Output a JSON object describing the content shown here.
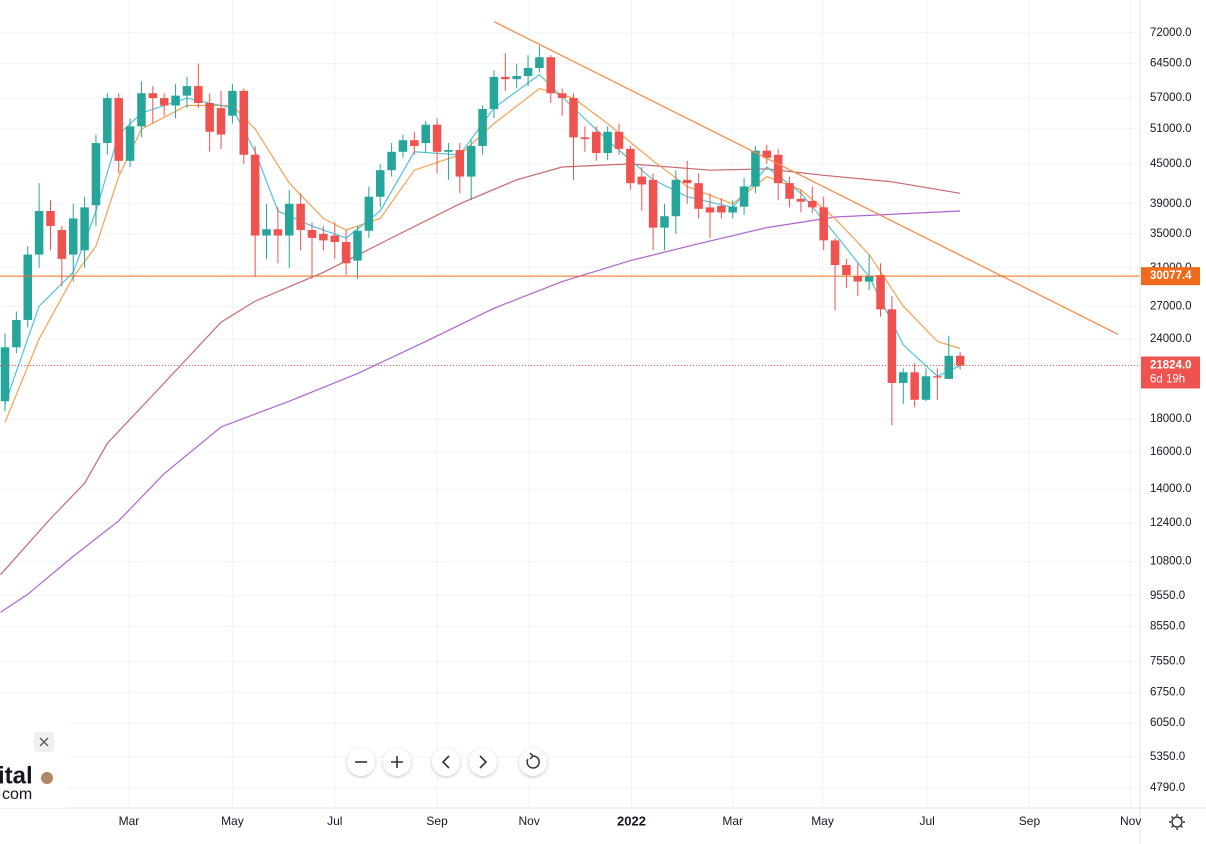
{
  "chart_data": {
    "type": "candlestick",
    "open": [
      19200,
      23300,
      25700,
      32500,
      38000,
      35500,
      32500,
      33000,
      38800,
      48500,
      57000,
      45500,
      51500,
      58000,
      57000,
      55500,
      57500,
      59500,
      56000,
      55000,
      53500,
      58500,
      46500,
      34800,
      35600,
      34800,
      39000,
      35500,
      35000,
      34800,
      34000,
      31800,
      35400,
      40000,
      44000,
      47000,
      49000,
      48500,
      51800,
      47000,
      47300,
      43000,
      48000,
      54800,
      61500,
      61000,
      61700,
      63500,
      66000,
      58000,
      57000,
      49500,
      50500,
      46800,
      50500,
      47500,
      43000,
      42500,
      35800,
      37300,
      42500,
      42000,
      38500,
      38700,
      37800,
      38600,
      41500,
      47200,
      46500,
      42000,
      39700,
      39400,
      38500,
      34200,
      31300,
      30100,
      29500,
      30200,
      26700,
      20500,
      21300,
      19300,
      21000,
      20800,
      22600
    ],
    "high": [
      24500,
      26500,
      33500,
      42000,
      39500,
      36000,
      39000,
      40000,
      50000,
      58000,
      58000,
      53000,
      60500,
      59500,
      58000,
      60000,
      61500,
      64500,
      58000,
      58500,
      60000,
      59000,
      48000,
      39000,
      38500,
      41000,
      40500,
      36500,
      36000,
      36500,
      35500,
      36000,
      41500,
      45000,
      48500,
      50000,
      50500,
      52500,
      53000,
      48500,
      48500,
      49000,
      55500,
      63000,
      67000,
      64500,
      66500,
      68800,
      66500,
      59000,
      58000,
      51500,
      51500,
      51500,
      52000,
      48000,
      44500,
      43500,
      39000,
      44000,
      45500,
      43500,
      40500,
      39800,
      39500,
      42800,
      48000,
      48200,
      47500,
      43000,
      41000,
      41500,
      40000,
      34500,
      32000,
      31500,
      32500,
      31500,
      28000,
      21600,
      22000,
      21600,
      21600,
      24300,
      22900
    ],
    "low": [
      18500,
      22800,
      25000,
      31000,
      33000,
      29000,
      29500,
      31000,
      36000,
      46500,
      43500,
      44500,
      49500,
      52000,
      53500,
      53000,
      55000,
      55000,
      47000,
      47500,
      52000,
      45000,
      30000,
      32000,
      31500,
      31000,
      33000,
      29800,
      33000,
      32000,
      30200,
      29800,
      34500,
      38500,
      43000,
      46000,
      46500,
      46800,
      43500,
      42500,
      40500,
      39500,
      46500,
      53000,
      58500,
      59000,
      59500,
      62500,
      56000,
      53500,
      42500,
      47000,
      45500,
      45600,
      46500,
      41000,
      38000,
      33000,
      33000,
      35000,
      39000,
      37000,
      34500,
      37000,
      37000,
      37500,
      40500,
      45000,
      39500,
      38500,
      37800,
      37700,
      33000,
      26600,
      28800,
      28000,
      28600,
      26000,
      17600,
      19000,
      18800,
      19200,
      19300,
      20800,
      21500
    ],
    "close": [
      23300,
      25700,
      32500,
      38000,
      36000,
      32000,
      37000,
      38500,
      48500,
      57000,
      45500,
      51500,
      58000,
      57000,
      55500,
      57500,
      59500,
      56000,
      50500,
      50000,
      58500,
      46500,
      34800,
      35600,
      34800,
      39000,
      35500,
      34500,
      34200,
      34000,
      31500,
      35400,
      40000,
      44000,
      47000,
      49000,
      48000,
      51800,
      47000,
      47300,
      43000,
      48000,
      54800,
      61500,
      61000,
      61700,
      63500,
      66000,
      58000,
      57000,
      49500,
      49200,
      46800,
      50500,
      47500,
      42000,
      41800,
      35800,
      37300,
      42500,
      42000,
      38300,
      37800,
      37800,
      38600,
      41500,
      47200,
      46000,
      42000,
      39700,
      39300,
      38500,
      34200,
      31300,
      30200,
      29500,
      30100,
      26700,
      20500,
      21300,
      19300,
      21000,
      20900,
      22600,
      21824
    ],
    "up_color": "#26a69a",
    "down_color": "#ef5350",
    "xlim": [
      -0.44,
      99.82
    ],
    "xticks": [
      {
        "value": 10.9,
        "label": "Mar"
      },
      {
        "value": 20.0,
        "label": "May"
      },
      {
        "value": 29.0,
        "label": "Jul"
      },
      {
        "value": 38.0,
        "label": "Sep"
      },
      {
        "value": 46.1,
        "label": "Nov"
      },
      {
        "value": 55.1,
        "label": "2022"
      },
      {
        "value": 64.0,
        "label": "Mar"
      },
      {
        "value": 71.9,
        "label": "May"
      },
      {
        "value": 81.1,
        "label": "Jul"
      },
      {
        "value": 90.1,
        "label": "Sep"
      },
      {
        "value": 99.0,
        "label": "Nov"
      }
    ],
    "ylim": [
      4458,
      81050
    ],
    "log_scale": true,
    "grid": true,
    "yticks": [
      {
        "value": 72000,
        "label": "72000.0"
      },
      {
        "value": 64500,
        "label": "64500.0"
      },
      {
        "value": 57000,
        "label": "57000.0"
      },
      {
        "value": 51000,
        "label": "51000.0"
      },
      {
        "value": 45000,
        "label": "45000.0"
      },
      {
        "value": 39000,
        "label": "39000.0"
      },
      {
        "value": 35000,
        "label": "35000.0"
      },
      {
        "value": 31000,
        "label": "31000.0"
      },
      {
        "value": 27000,
        "label": "27000.0"
      },
      {
        "value": 24000,
        "label": "24000.0"
      },
      {
        "value": 18000,
        "label": "18000.0"
      },
      {
        "value": 16000,
        "label": "16000.0"
      },
      {
        "value": 14000,
        "label": "14000.0"
      },
      {
        "value": 12400,
        "label": "12400.0"
      },
      {
        "value": 10800,
        "label": "10800.0"
      },
      {
        "value": 9550,
        "label": "9550.0"
      },
      {
        "value": 8550,
        "label": "8550.0"
      },
      {
        "value": 7550,
        "label": "7550.0"
      },
      {
        "value": 6750,
        "label": "6750.0"
      },
      {
        "value": 6050,
        "label": "6050.0"
      },
      {
        "value": 5350,
        "label": "5350.0"
      },
      {
        "value": 4790,
        "label": "4790.0"
      }
    ],
    "overlays": [
      {
        "color": "#4fc3d9",
        "x": [
          0,
          3,
          6,
          8,
          10,
          12,
          16,
          20,
          22,
          24,
          27,
          30,
          33,
          36,
          40,
          43,
          47,
          50,
          53,
          57,
          60,
          64,
          67,
          70,
          73,
          76,
          79,
          82,
          84
        ],
        "values": [
          19000,
          27000,
          30500,
          38000,
          50000,
          54000,
          57000,
          55000,
          47000,
          38000,
          36000,
          34500,
          38000,
          47000,
          46500,
          55000,
          62000,
          55000,
          49000,
          42500,
          40000,
          38500,
          44500,
          40500,
          35000,
          30000,
          23500,
          21000,
          21800
        ]
      },
      {
        "color": "#f6a04d",
        "x": [
          0,
          3,
          6,
          8,
          10,
          12,
          16,
          20,
          22,
          25,
          28,
          30,
          33,
          36,
          40,
          43,
          47,
          50,
          53,
          57,
          60,
          64,
          67,
          70,
          73,
          76,
          79,
          82,
          84
        ],
        "values": [
          17800,
          24000,
          30000,
          33500,
          43000,
          51000,
          55500,
          55500,
          51000,
          42000,
          37000,
          35500,
          37000,
          44000,
          46500,
          52000,
          59000,
          57000,
          52000,
          45500,
          41500,
          39000,
          43000,
          41000,
          37000,
          32500,
          27000,
          23800,
          23200
        ]
      },
      {
        "color": "#c9686d",
        "x": [
          -0.4,
          4,
          7,
          9,
          14,
          19,
          22,
          28,
          34,
          40,
          45,
          49,
          55,
          62,
          67,
          72,
          78,
          84
        ],
        "values": [
          10300,
          12600,
          14300,
          16500,
          20500,
          25500,
          27500,
          30500,
          34500,
          39000,
          42500,
          44500,
          45000,
          44000,
          44200,
          43200,
          42200,
          40500
        ]
      },
      {
        "color": "#ae64d2",
        "x": [
          -0.4,
          2,
          6,
          10,
          14,
          19,
          25,
          31,
          37,
          43,
          49,
          55,
          61,
          67,
          73,
          84
        ],
        "values": [
          9000,
          9600,
          11000,
          12500,
          14800,
          17500,
          19200,
          21200,
          23800,
          26800,
          29500,
          31800,
          33800,
          35800,
          37200,
          38000
        ]
      }
    ],
    "trendline": {
      "color": "#f5894b",
      "x": [
        43.0,
        97.9
      ],
      "values": [
        75000,
        24400
      ]
    },
    "hline": {
      "value": 30077.4,
      "color": "#f06a1c"
    },
    "last_price": {
      "value": 21824,
      "label": "21824.0",
      "countdown": "6d 19h"
    }
  },
  "watermark": {
    "line1": "ital",
    "line2": "com"
  }
}
